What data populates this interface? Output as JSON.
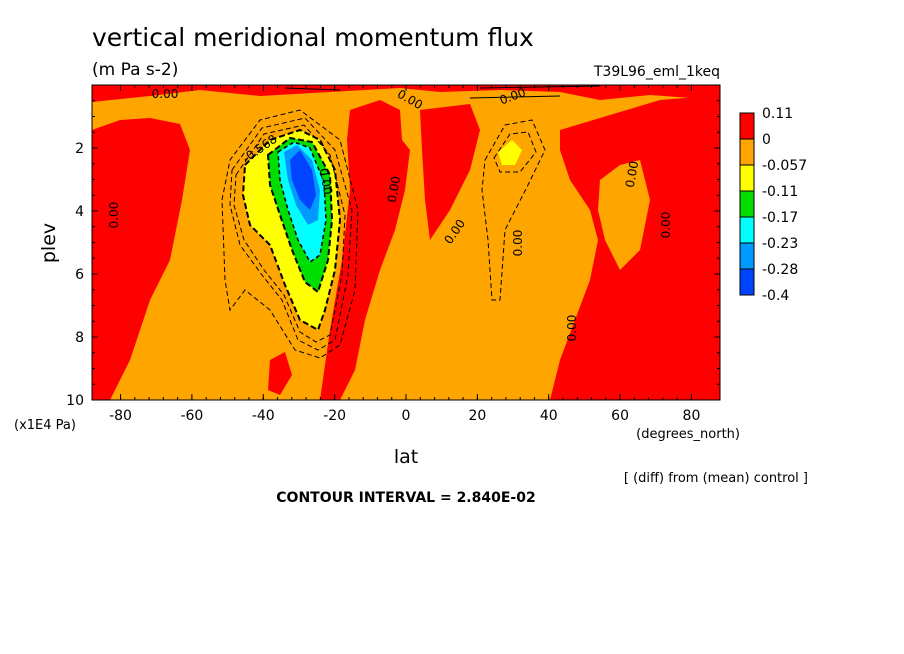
{
  "chart_data": {
    "type": "heatmap",
    "title": "vertical meridional momentum flux",
    "subtitle": "(m Pa s-2)",
    "run_label": "T39L96_eml_1keq",
    "xlabel": "lat",
    "x_units": "(degrees_north)",
    "ylabel": "plev",
    "y_units": "(x1E4 Pa)",
    "xlim": [
      -88,
      88
    ],
    "ylim": [
      10,
      0
    ],
    "x_ticks": [
      "-80",
      "-60",
      "-40",
      "-20",
      "0",
      "20",
      "40",
      "60",
      "80"
    ],
    "y_ticks": [
      "2",
      "4",
      "6",
      "8",
      "10"
    ],
    "note": "[ (diff) from (mean) control ]",
    "contour_interval": "CONTOUR INTERVAL = 2.840E-02",
    "contour_labels": [
      "0.00",
      "0.00",
      "0.00",
      "0.00",
      "0.00",
      "0.00",
      "0.00",
      "0.00",
      "0.00",
      "0.00",
      "0.00",
      "-0.568"
    ],
    "legend": {
      "placement": "right",
      "labels": [
        "0.11",
        "0",
        "-0.057",
        "-0.11",
        "-0.17",
        "-0.23",
        "-0.28",
        "-0.4"
      ],
      "colors": [
        "#ff0000",
        "#ffa500",
        "#ffff00",
        "#00dd00",
        "#00ffff",
        "#0099ff",
        "#0044ff"
      ]
    },
    "grid": false
  }
}
